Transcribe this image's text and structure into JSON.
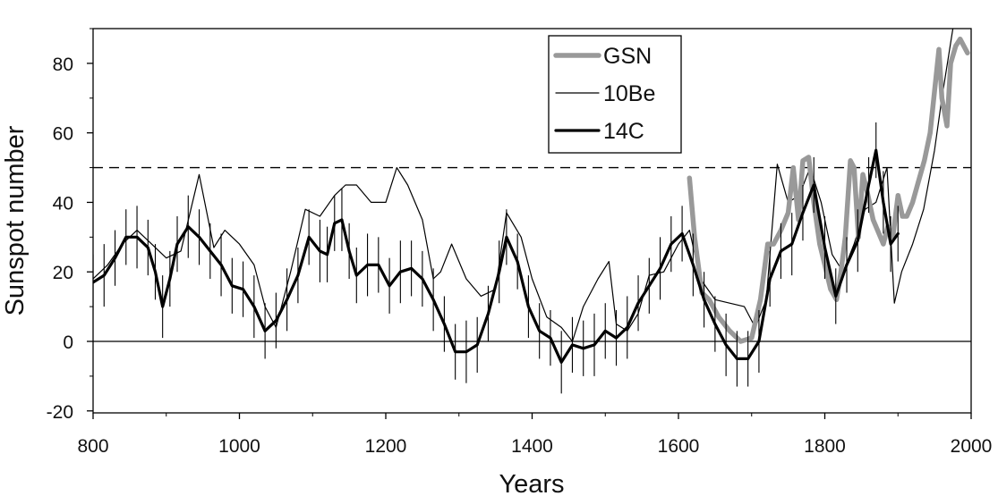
{
  "chart_data": {
    "type": "line",
    "title": "",
    "xlabel": "Years",
    "ylabel": "Sunspot number",
    "xlim": [
      800,
      2000
    ],
    "ylim": [
      -20,
      90
    ],
    "x_ticks": [
      800,
      1000,
      1200,
      1400,
      1600,
      1800,
      2000
    ],
    "y_ticks": [
      -20,
      0,
      20,
      40,
      60,
      80
    ],
    "reference_lines": [
      {
        "y": 50,
        "style": "dashed"
      },
      {
        "y": 0,
        "style": "solid"
      }
    ],
    "legend_position": "top-center",
    "series": [
      {
        "name": "GSN",
        "color": "#999999",
        "style": "thick-grey",
        "x": [
          1615,
          1622,
          1632,
          1642,
          1655,
          1670,
          1685,
          1700,
          1712,
          1722,
          1730,
          1740,
          1750,
          1757,
          1764,
          1770,
          1778,
          1785,
          1793,
          1800,
          1808,
          1816,
          1822,
          1828,
          1835,
          1840,
          1846,
          1852,
          1858,
          1866,
          1872,
          1880,
          1886,
          1893,
          1900,
          1906,
          1912,
          1920,
          1928,
          1936,
          1944,
          1950,
          1956,
          1960,
          1967,
          1972,
          1979,
          1985,
          1990,
          1995
        ],
        "y": [
          47,
          30,
          14,
          12,
          7,
          3,
          0,
          1,
          12,
          28,
          28,
          32,
          37,
          50,
          35,
          52,
          53,
          40,
          28,
          22,
          15,
          12,
          20,
          30,
          52,
          50,
          30,
          48,
          43,
          35,
          32,
          28,
          33,
          30,
          42,
          36,
          36,
          40,
          46,
          52,
          60,
          72,
          84,
          70,
          62,
          80,
          85,
          87,
          85,
          83
        ]
      },
      {
        "name": "10Be",
        "color": "#000000",
        "style": "thin",
        "x": [
          800,
          820,
          840,
          860,
          880,
          900,
          920,
          945,
          965,
          980,
          1000,
          1020,
          1035,
          1050,
          1070,
          1090,
          1110,
          1130,
          1145,
          1160,
          1180,
          1200,
          1215,
          1230,
          1250,
          1265,
          1275,
          1290,
          1310,
          1330,
          1350,
          1365,
          1385,
          1400,
          1420,
          1440,
          1455,
          1470,
          1490,
          1505,
          1515,
          1530,
          1545,
          1560,
          1580,
          1600,
          1615,
          1630,
          1650,
          1670,
          1690,
          1705,
          1720,
          1735,
          1750,
          1765,
          1780,
          1795,
          1810,
          1825,
          1840,
          1855,
          1870,
          1885,
          1895,
          1905,
          1920,
          1935,
          1950,
          1960,
          1975
        ],
        "y": [
          18,
          22,
          28,
          32,
          28,
          24,
          26,
          48,
          27,
          32,
          28,
          22,
          10,
          4,
          20,
          38,
          36,
          42,
          45,
          45,
          40,
          40,
          50,
          45,
          35,
          18,
          20,
          28,
          18,
          13,
          15,
          37,
          30,
          18,
          7,
          4,
          0,
          10,
          18,
          23,
          5,
          3,
          8,
          19,
          20,
          28,
          32,
          18,
          12,
          11,
          10,
          4,
          12,
          51,
          40,
          42,
          50,
          40,
          25,
          20,
          28,
          38,
          40,
          50,
          11,
          20,
          28,
          38,
          55,
          70,
          90
        ]
      },
      {
        "name": "14C",
        "color": "#000000",
        "style": "thick",
        "x": [
          800,
          815,
          830,
          845,
          860,
          875,
          885,
          895,
          905,
          915,
          930,
          945,
          960,
          975,
          990,
          1005,
          1020,
          1035,
          1050,
          1065,
          1080,
          1095,
          1110,
          1120,
          1130,
          1140,
          1150,
          1160,
          1175,
          1190,
          1205,
          1220,
          1235,
          1250,
          1265,
          1280,
          1295,
          1310,
          1325,
          1340,
          1355,
          1365,
          1380,
          1395,
          1410,
          1425,
          1440,
          1455,
          1470,
          1485,
          1500,
          1515,
          1530,
          1545,
          1560,
          1575,
          1590,
          1605,
          1620,
          1635,
          1650,
          1665,
          1680,
          1695,
          1710,
          1725,
          1740,
          1755,
          1770,
          1785,
          1800,
          1815,
          1830,
          1845,
          1860,
          1870,
          1880,
          1890,
          1900
        ],
        "y": [
          17,
          19,
          24,
          30,
          30,
          27,
          20,
          10,
          18,
          28,
          33,
          30,
          26,
          22,
          16,
          15,
          10,
          3,
          6,
          12,
          19,
          30,
          26,
          25,
          34,
          35,
          26,
          19,
          22,
          22,
          16,
          20,
          21,
          18,
          12,
          5,
          -3,
          -3,
          -1,
          8,
          20,
          30,
          23,
          10,
          3,
          1,
          -6,
          -1,
          -2,
          -1,
          3,
          1,
          4,
          11,
          16,
          21,
          28,
          31,
          22,
          12,
          5,
          -1,
          -5,
          -5,
          0,
          18,
          26,
          28,
          37,
          45,
          27,
          13,
          22,
          29,
          45,
          55,
          40,
          28,
          31
        ]
      }
    ]
  }
}
